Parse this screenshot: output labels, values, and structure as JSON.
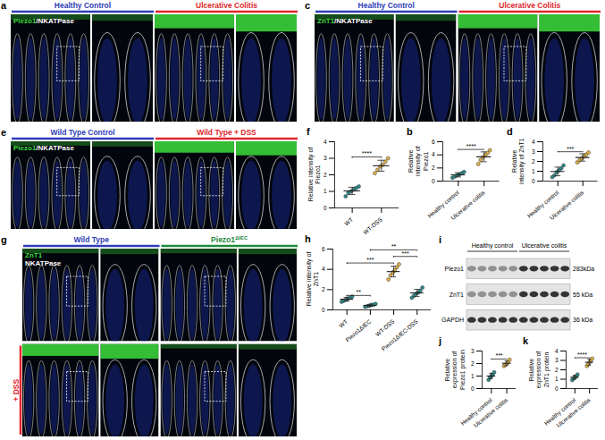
{
  "panels": [
    {
      "letter": "a",
      "type": "image",
      "headers": [
        {
          "text": "Healthy Control",
          "color": "#2f3db8"
        },
        {
          "text": "Ulcerative Colitis",
          "color": "#e0262b"
        }
      ],
      "stain": [
        {
          "text": "Piezo1",
          "color": "#3ddc3d"
        },
        {
          "text": "/NKATPase",
          "color": "#ffffff"
        }
      ]
    },
    {
      "letter": "c",
      "type": "image",
      "headers": [
        {
          "text": "Healthy Control",
          "color": "#2f3db8"
        },
        {
          "text": "Ulcerative Colitis",
          "color": "#e0262b"
        }
      ],
      "stain": [
        {
          "text": "ZnT1",
          "color": "#3ddc3d"
        },
        {
          "text": "/NKATPase",
          "color": "#ffffff"
        }
      ]
    },
    {
      "letter": "e",
      "type": "image",
      "headers": [
        {
          "text": "Wild Type Control",
          "color": "#2f3db8"
        },
        {
          "text": "Wild Type + DSS",
          "color": "#e0262b"
        }
      ],
      "stain": [
        {
          "text": "Piezo1",
          "color": "#3ddc3d"
        },
        {
          "text": "/NKATPase",
          "color": "#ffffff"
        }
      ]
    },
    {
      "letter": "g",
      "type": "image",
      "headers": [
        {
          "text": "Wild Type",
          "color": "#2f3db8"
        },
        {
          "text": "Piezo1",
          "sup": "ΔIEC",
          "color": "#1e8a3c"
        }
      ],
      "stain": [
        {
          "text": "ZnT1",
          "color": "#3ddc3d"
        },
        {
          "text": "NKATPase",
          "color": "#ffffff"
        }
      ],
      "row_label": {
        "text": "+ DSS",
        "color": "#e0262b"
      }
    },
    {
      "letter": "i",
      "type": "blot",
      "groups": [
        {
          "label": "Healthy control",
          "lanes": 5
        },
        {
          "label": "Ulcerative colitis",
          "lanes": 5
        }
      ],
      "rows": [
        {
          "protein": "Piezo1",
          "size": "283kDa"
        },
        {
          "protein": "ZnT1",
          "size": "55 kDa"
        },
        {
          "protein": "GAPDH",
          "size": "36 kDa"
        }
      ]
    }
  ],
  "chart_data": [
    {
      "letter": "f",
      "type": "dot",
      "y_label": "Relative intensity of Piezo1",
      "categories": [
        "WT",
        "WT-DSS"
      ],
      "points": [
        [
          0.7,
          0.9,
          1.0,
          1.1,
          1.2,
          1.3
        ],
        [
          2.1,
          2.3,
          2.5,
          2.6,
          2.8,
          3.0
        ]
      ],
      "values": [
        1.03,
        2.55
      ],
      "error": [
        0.22,
        0.33
      ],
      "colors": [
        "#2e8b8b",
        "#e3b448"
      ],
      "ylim": [
        0,
        4
      ],
      "yticks": [
        0,
        1,
        2,
        3,
        4
      ],
      "comparisons": [
        {
          "between": [
            "WT",
            "WT-DSS"
          ],
          "label": "****"
        }
      ]
    },
    {
      "letter": "b",
      "type": "dot",
      "y_label": "Relative intensity of Piezo1",
      "categories": [
        "Healthy control",
        "Ulcerative colitis"
      ],
      "points": [
        [
          0.5,
          0.7,
          0.9,
          1.0,
          1.2,
          1.4
        ],
        [
          2.6,
          3.2,
          3.6,
          4.0,
          4.3,
          4.7
        ]
      ],
      "values": [
        0.95,
        3.7
      ],
      "error": [
        0.32,
        0.75
      ],
      "colors": [
        "#2e8b8b",
        "#e3b448"
      ],
      "ylim": [
        0,
        6
      ],
      "yticks": [
        0,
        2,
        4,
        6
      ],
      "comparisons": [
        {
          "between": [
            "Healthy control",
            "Ulcerative colitis"
          ],
          "label": "****"
        }
      ]
    },
    {
      "letter": "d",
      "type": "dot",
      "y_label": "Relative intensity of ZnT1",
      "categories": [
        "Healthy control",
        "Ulcerative colitis"
      ],
      "points": [
        [
          0.4,
          0.6,
          0.9,
          1.1,
          1.3,
          1.6
        ],
        [
          1.9,
          2.1,
          2.3,
          2.5,
          2.7,
          2.9
        ]
      ],
      "values": [
        0.98,
        2.4
      ],
      "error": [
        0.44,
        0.37
      ],
      "colors": [
        "#2e8b8b",
        "#e3b448"
      ],
      "ylim": [
        0,
        4
      ],
      "yticks": [
        0,
        1,
        2,
        3,
        4
      ],
      "comparisons": [
        {
          "between": [
            "Healthy control",
            "Ulcerative colitis"
          ],
          "label": "***"
        }
      ]
    },
    {
      "letter": "h",
      "type": "dot",
      "y_label": "Relative intensity of ZnT1",
      "categories": [
        "WT",
        "Piezo1ΔIEC",
        "WT-DSS",
        "Piezo1ΔIEC-DSS"
      ],
      "points": [
        [
          0.8,
          0.9,
          1.0,
          1.1,
          1.2,
          1.3
        ],
        [
          0.3,
          0.35,
          0.4,
          0.5,
          0.5,
          0.6
        ],
        [
          3.0,
          3.4,
          3.7,
          3.9,
          4.2,
          4.5
        ],
        [
          1.2,
          1.4,
          1.6,
          1.7,
          1.9,
          2.2
        ]
      ],
      "values": [
        1.05,
        0.44,
        3.78,
        1.67
      ],
      "error": [
        0.19,
        0.11,
        0.53,
        0.35
      ],
      "colors": [
        "#2e8b8b",
        "#2e8b8b",
        "#e3b448",
        "#2e8b8b"
      ],
      "ylim": [
        0,
        6
      ],
      "yticks": [
        0,
        2,
        4,
        6
      ],
      "comparisons": [
        {
          "between": [
            "WT",
            "Piezo1ΔIEC"
          ],
          "label": "**"
        },
        {
          "between": [
            "WT",
            "WT-DSS"
          ],
          "label": "***"
        },
        {
          "between": [
            "WT-DSS",
            "Piezo1ΔIEC-DSS"
          ],
          "label": "***"
        },
        {
          "between": [
            "Piezo1ΔIEC",
            "Piezo1ΔIEC-DSS"
          ],
          "label": "**"
        }
      ]
    },
    {
      "letter": "j",
      "type": "dot",
      "y_label": "Relative expression of Piezo1 protein",
      "categories": [
        "Healthy control",
        "Ulcerative colitis"
      ],
      "points": [
        [
          0.7,
          0.9,
          1.0,
          1.1,
          1.3
        ],
        [
          1.8,
          1.9,
          2.0,
          2.1,
          2.3
        ]
      ],
      "values": [
        1.0,
        2.02
      ],
      "error": [
        0.22,
        0.19
      ],
      "colors": [
        "#2e8b8b",
        "#e3b448"
      ],
      "ylim": [
        0,
        3
      ],
      "yticks": [
        0,
        1,
        2,
        3
      ],
      "comparisons": [
        {
          "between": [
            "Healthy control",
            "Ulcerative colitis"
          ],
          "label": "***"
        }
      ]
    },
    {
      "letter": "k",
      "type": "dot",
      "y_label": "Relative expression of ZnT1 protein",
      "categories": [
        "Healthy control",
        "Ulcerative colitis"
      ],
      "points": [
        [
          0.9,
          1.1,
          1.2,
          1.3,
          1.5
        ],
        [
          2.4,
          2.6,
          2.8,
          3.0,
          3.2
        ]
      ],
      "values": [
        1.2,
        2.8
      ],
      "error": [
        0.22,
        0.32
      ],
      "colors": [
        "#2e8b8b",
        "#e3b448"
      ],
      "ylim": [
        0,
        4
      ],
      "yticks": [
        0,
        1,
        2,
        3,
        4
      ],
      "comparisons": [
        {
          "between": [
            "Healthy control",
            "Ulcerative colitis"
          ],
          "label": "****"
        }
      ]
    }
  ]
}
